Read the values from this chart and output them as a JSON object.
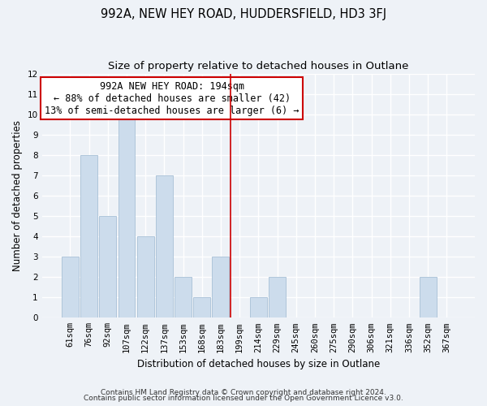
{
  "title": "992A, NEW HEY ROAD, HUDDERSFIELD, HD3 3FJ",
  "subtitle": "Size of property relative to detached houses in Outlane",
  "xlabel": "Distribution of detached houses by size in Outlane",
  "ylabel": "Number of detached properties",
  "bar_labels": [
    "61sqm",
    "76sqm",
    "92sqm",
    "107sqm",
    "122sqm",
    "137sqm",
    "153sqm",
    "168sqm",
    "183sqm",
    "199sqm",
    "214sqm",
    "229sqm",
    "245sqm",
    "260sqm",
    "275sqm",
    "290sqm",
    "306sqm",
    "321sqm",
    "336sqm",
    "352sqm",
    "367sqm"
  ],
  "bar_values": [
    3,
    8,
    5,
    10,
    4,
    7,
    2,
    1,
    3,
    0,
    1,
    2,
    0,
    0,
    0,
    0,
    0,
    0,
    0,
    2,
    0
  ],
  "bar_color": "#ccdcec",
  "bar_edge_color": "#a8c0d6",
  "highlight_line_color": "#cc0000",
  "annotation_text": "992A NEW HEY ROAD: 194sqm\n← 88% of detached houses are smaller (42)\n13% of semi-detached houses are larger (6) →",
  "annotation_box_color": "#ffffff",
  "annotation_box_edge": "#cc0000",
  "ylim": [
    0,
    12
  ],
  "yticks": [
    0,
    1,
    2,
    3,
    4,
    5,
    6,
    7,
    8,
    9,
    10,
    11,
    12
  ],
  "footer_line1": "Contains HM Land Registry data © Crown copyright and database right 2024.",
  "footer_line2": "Contains public sector information licensed under the Open Government Licence v3.0.",
  "background_color": "#eef2f7",
  "grid_color": "#ffffff",
  "title_fontsize": 10.5,
  "subtitle_fontsize": 9.5,
  "axis_label_fontsize": 8.5,
  "tick_fontsize": 7.5,
  "annotation_fontsize": 8.5,
  "footer_fontsize": 6.5
}
